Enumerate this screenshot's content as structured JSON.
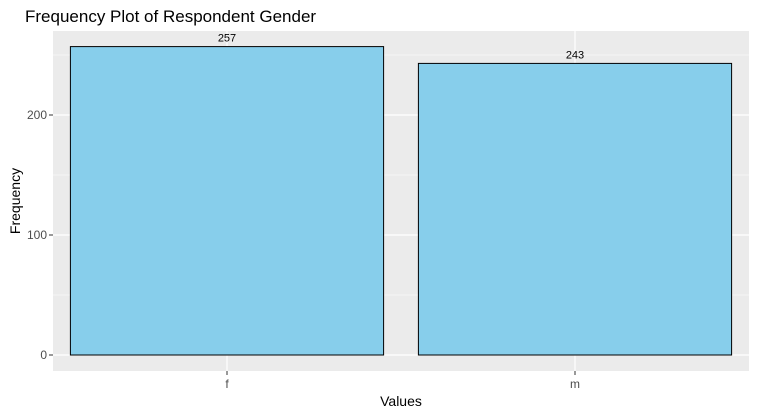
{
  "chart_data": {
    "type": "bar",
    "title": "Frequency Plot of Respondent Gender",
    "xlabel": "Values",
    "ylabel": "Frequency",
    "categories": [
      "f",
      "m"
    ],
    "values": [
      257,
      243
    ],
    "data_labels": [
      "257",
      "243"
    ],
    "ylim": [
      0,
      270
    ],
    "yticks": [
      0,
      100,
      200
    ],
    "ytick_labels": [
      "0",
      "100",
      "200"
    ],
    "grid": true,
    "legend": "none",
    "colors": {
      "bar_fill": "#87CEEB",
      "bar_stroke": "#000000",
      "panel_background": "#EBEBEB",
      "grid": "#FFFFFF"
    }
  }
}
